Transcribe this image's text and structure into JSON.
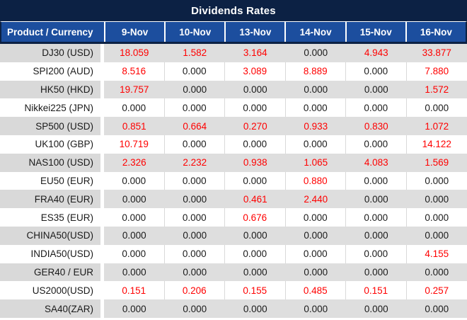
{
  "title": "Dividends Rates",
  "colors": {
    "title_bg": "#0c2144",
    "header_bg": "#1c4e9e",
    "row_alt_product_bg": "#d9d9d9",
    "row_alt_value_bg": "#dedede",
    "grid_line": "#d9d9d9",
    "positive": "#ff0000",
    "zero": "#1a1a1a"
  },
  "table": {
    "product_header": "Product / Currency",
    "date_headers": [
      "9-Nov",
      "10-Nov",
      "13-Nov",
      "14-Nov",
      "15-Nov",
      "16-Nov"
    ],
    "rows": [
      {
        "product": "DJ30 (USD)",
        "values": [
          "18.059",
          "1.582",
          "3.164",
          "0.000",
          "4.943",
          "33.877"
        ]
      },
      {
        "product": "SPI200 (AUD)",
        "values": [
          "8.516",
          "0.000",
          "3.089",
          "8.889",
          "0.000",
          "7.880"
        ]
      },
      {
        "product": "HK50 (HKD)",
        "values": [
          "19.757",
          "0.000",
          "0.000",
          "0.000",
          "0.000",
          "1.572"
        ]
      },
      {
        "product": "Nikkei225 (JPN)",
        "values": [
          "0.000",
          "0.000",
          "0.000",
          "0.000",
          "0.000",
          "0.000"
        ]
      },
      {
        "product": "SP500 (USD)",
        "values": [
          "0.851",
          "0.664",
          "0.270",
          "0.933",
          "0.830",
          "1.072"
        ]
      },
      {
        "product": "UK100 (GBP)",
        "values": [
          "10.719",
          "0.000",
          "0.000",
          "0.000",
          "0.000",
          "14.122"
        ]
      },
      {
        "product": "NAS100 (USD)",
        "values": [
          "2.326",
          "2.232",
          "0.938",
          "1.065",
          "4.083",
          "1.569"
        ]
      },
      {
        "product": "EU50 (EUR)",
        "values": [
          "0.000",
          "0.000",
          "0.000",
          "0.880",
          "0.000",
          "0.000"
        ]
      },
      {
        "product": "FRA40 (EUR)",
        "values": [
          "0.000",
          "0.000",
          "0.461",
          "2.440",
          "0.000",
          "0.000"
        ]
      },
      {
        "product": "ES35 (EUR)",
        "values": [
          "0.000",
          "0.000",
          "0.676",
          "0.000",
          "0.000",
          "0.000"
        ]
      },
      {
        "product": "CHINA50(USD)",
        "values": [
          "0.000",
          "0.000",
          "0.000",
          "0.000",
          "0.000",
          "0.000"
        ]
      },
      {
        "product": "INDIA50(USD)",
        "values": [
          "0.000",
          "0.000",
          "0.000",
          "0.000",
          "0.000",
          "4.155"
        ]
      },
      {
        "product": "GER40 / EUR",
        "values": [
          "0.000",
          "0.000",
          "0.000",
          "0.000",
          "0.000",
          "0.000"
        ]
      },
      {
        "product": "US2000(USD)",
        "values": [
          "0.151",
          "0.206",
          "0.155",
          "0.485",
          "0.151",
          "0.257"
        ]
      },
      {
        "product": "SA40(ZAR)",
        "values": [
          "0.000",
          "0.000",
          "0.000",
          "0.000",
          "0.000",
          "0.000"
        ]
      }
    ]
  }
}
